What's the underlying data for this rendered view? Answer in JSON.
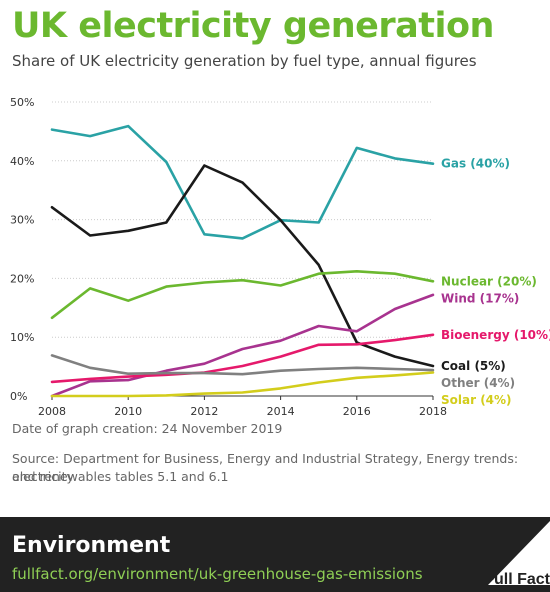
{
  "header": {
    "title": "UK electricity generation",
    "subtitle": "Share of UK electricity generation by fuel type, annual figures"
  },
  "colors": {
    "brand_green": "#6bb82f",
    "footer_bg": "#222222",
    "link_green": "#8fcf55",
    "axis": "#333333",
    "grid": "#cccccc"
  },
  "chart_data": {
    "type": "line",
    "x": [
      2008,
      2009,
      2010,
      2011,
      2012,
      2013,
      2014,
      2015,
      2016,
      2017,
      2018
    ],
    "xticks": [
      "2008",
      "2010",
      "2012",
      "2014",
      "2016",
      "2018"
    ],
    "yticks": [
      "0%",
      "10%",
      "20%",
      "30%",
      "40%",
      "50%"
    ],
    "ylim": [
      0,
      50
    ],
    "grid": true,
    "series": [
      {
        "name": "Gas",
        "label": "Gas (40%)",
        "color": "#2aa2a5",
        "values": [
          45.3,
          44.2,
          45.9,
          39.8,
          27.5,
          26.8,
          29.9,
          29.5,
          42.2,
          40.4,
          39.5
        ]
      },
      {
        "name": "Coal",
        "label": "Coal (5%)",
        "color": "#1a1a1a",
        "values": [
          32.1,
          27.3,
          28.1,
          29.5,
          39.2,
          36.3,
          29.9,
          22.3,
          9.1,
          6.7,
          5.1
        ]
      },
      {
        "name": "Nuclear",
        "label": "Nuclear (20%)",
        "color": "#6bb82f",
        "values": [
          13.3,
          18.3,
          16.2,
          18.6,
          19.3,
          19.7,
          18.8,
          20.8,
          21.2,
          20.8,
          19.5
        ]
      },
      {
        "name": "Wind",
        "label": "Wind (17%)",
        "color": "#a8338f",
        "values": [
          0,
          2.5,
          2.7,
          4.3,
          5.5,
          8.0,
          9.4,
          11.9,
          11.0,
          14.8,
          17.2
        ]
      },
      {
        "name": "Bioenergy",
        "label": "Bioenergy (10%)",
        "color": "#e5196b",
        "values": [
          2.4,
          2.9,
          3.3,
          3.6,
          4.0,
          5.1,
          6.7,
          8.7,
          8.8,
          9.5,
          10.4
        ]
      },
      {
        "name": "Other",
        "label": "Other (4%)",
        "color": "#808080",
        "values": [
          6.9,
          4.8,
          3.8,
          3.9,
          3.9,
          3.7,
          4.3,
          4.6,
          4.8,
          4.6,
          4.4
        ]
      },
      {
        "name": "Solar",
        "label": "Solar (4%)",
        "color": "#d3cd1c",
        "values": [
          0,
          0,
          0,
          0.1,
          0.4,
          0.6,
          1.3,
          2.3,
          3.1,
          3.5,
          4.0
        ]
      }
    ]
  },
  "notes": {
    "date": "Date of graph creation: 24 November 2019",
    "source_line1": "Source: Department for Business, Energy and Industrial Strategy, Energy trends: electricity",
    "source_line2": "and renewables tables 5.1 and 6.1"
  },
  "footer": {
    "section": "Environment",
    "url": "fullfact.org/environment/uk-greenhouse-gas-emissions",
    "logo_text": "Full Fact"
  }
}
